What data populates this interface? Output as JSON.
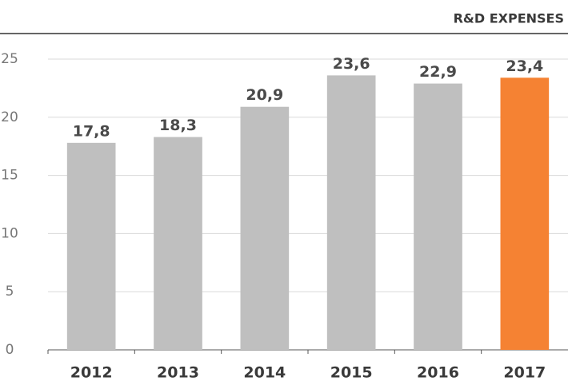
{
  "chart_data": {
    "type": "bar",
    "title": "R&D EXPENSES",
    "categories": [
      "2012",
      "2013",
      "2014",
      "2015",
      "2016",
      "2017"
    ],
    "values": [
      17.8,
      18.3,
      20.9,
      23.6,
      22.9,
      23.4
    ],
    "value_labels": [
      "17,8",
      "18,3",
      "20,9",
      "23,6",
      "22,9",
      "23,4"
    ],
    "colors": [
      "#bfbfbf",
      "#bfbfbf",
      "#bfbfbf",
      "#bfbfbf",
      "#bfbfbf",
      "#f58233"
    ],
    "ylim": [
      0,
      25
    ],
    "yticks": [
      0,
      5,
      10,
      15,
      20,
      25
    ],
    "grid": true
  }
}
